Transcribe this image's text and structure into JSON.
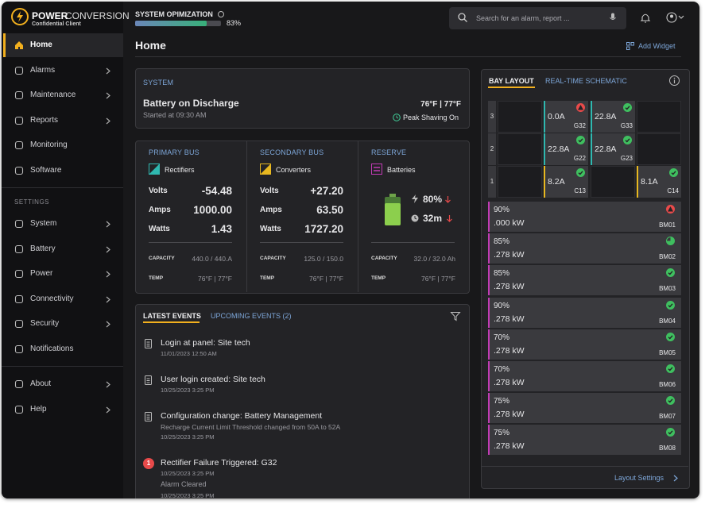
{
  "brand": {
    "power": "POWER",
    "conversion": "CONVERSION",
    "client": "Confidential Client"
  },
  "optimization": {
    "label": "SYSTEM OPIMIZATION",
    "value": 83,
    "value_label": "83%"
  },
  "search": {
    "placeholder": "Search for an alarm, report ..."
  },
  "nav": {
    "main": [
      {
        "label": "Home",
        "active": true
      },
      {
        "label": "Alarms",
        "submenu": true
      },
      {
        "label": "Maintenance",
        "submenu": true
      },
      {
        "label": "Reports",
        "submenu": true
      },
      {
        "label": "Monitoring"
      },
      {
        "label": "Software"
      }
    ],
    "settings_heading": "SETTINGS",
    "settings": [
      {
        "label": "System",
        "submenu": true
      },
      {
        "label": "Battery",
        "submenu": true
      },
      {
        "label": "Power",
        "submenu": true
      },
      {
        "label": "Connectivity",
        "submenu": true
      },
      {
        "label": "Security",
        "submenu": true
      },
      {
        "label": "Notifications"
      }
    ],
    "footer": [
      {
        "label": "About",
        "submenu": true
      },
      {
        "label": "Help",
        "submenu": true
      }
    ]
  },
  "page": {
    "title": "Home",
    "add_widget": "Add Widget"
  },
  "system": {
    "heading": "SYSTEM",
    "status": "Battery on Discharge",
    "started": "Started at 09:30 AM",
    "temps": "76°F | 77°F",
    "mode": "Peak Shaving On"
  },
  "buses": [
    {
      "heading": "PRIMARY BUS",
      "source": "Rectifiers",
      "color": "#2fb8b0",
      "rows": [
        {
          "label": "Volts",
          "value": "-54.48"
        },
        {
          "label": "Amps",
          "value": "1000.00"
        },
        {
          "label": "Watts",
          "value": "1.43"
        }
      ],
      "capacity_label": "CAPACITY",
      "capacity": "440.0 / 440.A",
      "temp_label": "TEMP",
      "temps": "76°F | 77°F"
    },
    {
      "heading": "SECONDARY BUS",
      "source": "Converters",
      "color": "#e8b820",
      "rows": [
        {
          "label": "Volts",
          "value": "+27.20"
        },
        {
          "label": "Amps",
          "value": "63.50"
        },
        {
          "label": "Watts",
          "value": "1727.20"
        }
      ],
      "capacity_label": "CAPACITY",
      "capacity": "125.0 / 150.0",
      "temp_label": "TEMP",
      "temps": "76°F | 77°F"
    }
  ],
  "reserve": {
    "heading": "RESERVE",
    "source": "Batteries",
    "color": "#c23bb5",
    "charge": "80%",
    "runtime": "32m",
    "capacity_label": "CAPACITY",
    "capacity": "32.0 / 32.0 Ah",
    "temp_label": "TEMP",
    "temps": "76°F | 77°F"
  },
  "events": {
    "tabs": [
      "LATEST EVENTS",
      "UPCOMING EVENTS (2)"
    ],
    "items": [
      {
        "title": "Login at panel: Site tech",
        "date": "11/01/2023 12:50 AM"
      },
      {
        "title": "User login created: Site tech",
        "date": "10/25/2023 3:25 PM"
      },
      {
        "title": "Configuration change: Battery Management",
        "detail": "Recharge Current Limit Threshold changed from 50A to 52A",
        "date": "10/25/2023 3:25 PM"
      },
      {
        "title": "Rectifier Failure Triggered: G32",
        "badge": "1",
        "date": "10/25/2023 3:25 PM",
        "note": "Alarm Cleared",
        "note_date": "10/25/2023 3:25 PM"
      }
    ]
  },
  "bay": {
    "tabs": [
      "BAY LAYOUT",
      "REAL-TIME SCHEMATIC"
    ],
    "rows": [
      {
        "label": "3",
        "cells": [
          null,
          {
            "id": "G32",
            "current": "0.0A",
            "status": "alarm",
            "color": "#2fb8b0"
          },
          {
            "id": "G33",
            "current": "22.8A",
            "status": "ok",
            "color": "#2fb8b0"
          },
          null
        ]
      },
      {
        "label": "2",
        "cells": [
          null,
          {
            "id": "G22",
            "current": "22.8A",
            "status": "ok",
            "color": "#2fb8b0"
          },
          {
            "id": "G23",
            "current": "22.8A",
            "status": "ok",
            "color": "#2fb8b0"
          },
          null
        ]
      },
      {
        "label": "1",
        "cells": [
          null,
          {
            "id": "C13",
            "current": "8.2A",
            "status": "ok",
            "color": "#e8b820"
          },
          null,
          {
            "id": "C14",
            "current": "8.1A",
            "status": "ok",
            "color": "#e8b820"
          }
        ]
      }
    ],
    "modules": [
      {
        "soc": "90%",
        "power": ".000 kW",
        "id": "BM01",
        "status": "alarm"
      },
      {
        "soc": "85%",
        "power": ".278 kW",
        "id": "BM02",
        "status": "partial"
      },
      {
        "soc": "85%",
        "power": ".278 kW",
        "id": "BM03",
        "status": "ok"
      },
      {
        "soc": "90%",
        "power": ".278 kW",
        "id": "BM04",
        "status": "ok"
      },
      {
        "soc": "70%",
        "power": ".278 kW",
        "id": "BM05",
        "status": "ok"
      },
      {
        "soc": "70%",
        "power": ".278 kW",
        "id": "BM06",
        "status": "ok"
      },
      {
        "soc": "75%",
        "power": ".278 kW",
        "id": "BM07",
        "status": "ok"
      },
      {
        "soc": "75%",
        "power": ".278 kW",
        "id": "BM08",
        "status": "ok"
      }
    ],
    "module_color": "#c23bb5",
    "layout_settings": "Layout Settings"
  }
}
